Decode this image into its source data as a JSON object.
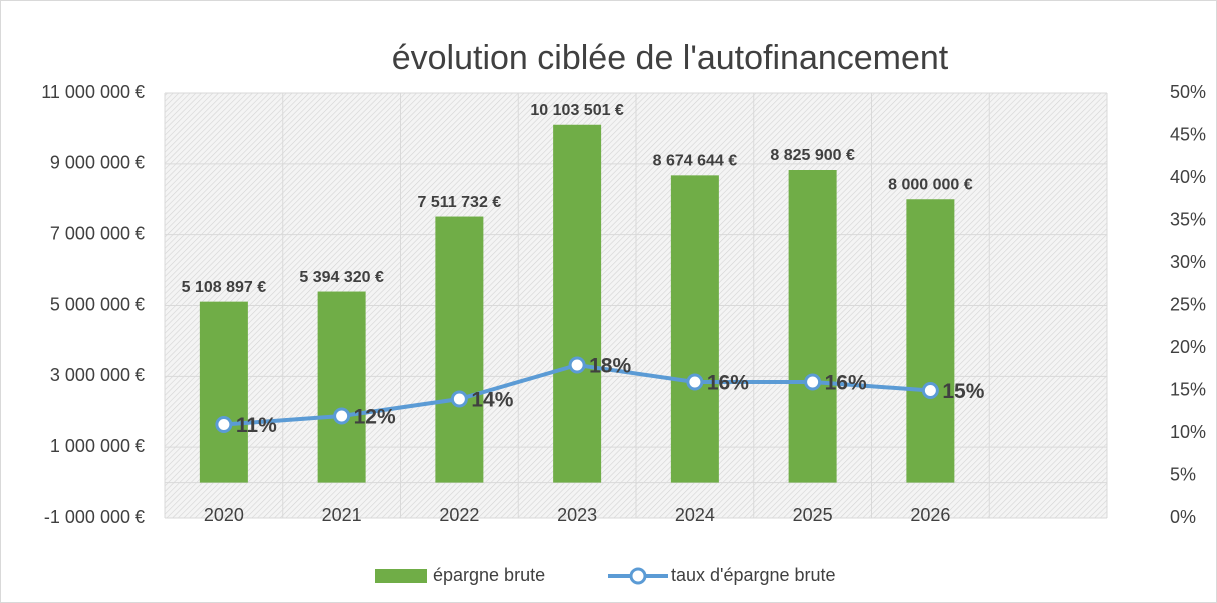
{
  "chart_data": {
    "type": "bar",
    "title": "évolution ciblée de l'autofinancement",
    "categories": [
      "2020",
      "2021",
      "2022",
      "2023",
      "2024",
      "2025",
      "2026",
      null
    ],
    "series": [
      {
        "name": "épargne brute",
        "type": "bar",
        "color": "#70ad47",
        "values": [
          5108897,
          5394320,
          7511732,
          10103501,
          8674644,
          8825900,
          8000000,
          null
        ],
        "value_labels": [
          "5 108 897 €",
          "5 394 320 €",
          "7 511 732 €",
          "10 103 501 €",
          "8 674 644 €",
          "8 825 900 €",
          "8 000 000 €",
          null
        ]
      },
      {
        "name": "taux d'épargne brute",
        "type": "line",
        "axis": "y2",
        "color": "#5b9bd5",
        "values": [
          11,
          12,
          14,
          18,
          16,
          16,
          15,
          null
        ],
        "value_labels": [
          "11%",
          "12%",
          "14%",
          "18%",
          "16%",
          "16%",
          "15%",
          null
        ]
      }
    ],
    "ylim": [
      -1000000,
      11000000
    ],
    "yticks": [
      {
        "value": -1000000,
        "label": "-1 000 000 €"
      },
      {
        "value": 1000000,
        "label": "1 000 000 €"
      },
      {
        "value": 3000000,
        "label": "3 000 000 €"
      },
      {
        "value": 5000000,
        "label": "5 000 000 €"
      },
      {
        "value": 7000000,
        "label": "7 000 000 €"
      },
      {
        "value": 9000000,
        "label": "9 000 000 €"
      },
      {
        "value": 11000000,
        "label": "11 000 000 €"
      }
    ],
    "y2lim": [
      0,
      50
    ],
    "y2ticks": [
      {
        "value": 0,
        "label": "0%"
      },
      {
        "value": 5,
        "label": "5%"
      },
      {
        "value": 10,
        "label": "10%"
      },
      {
        "value": 15,
        "label": "15%"
      },
      {
        "value": 20,
        "label": "20%"
      },
      {
        "value": 25,
        "label": "25%"
      },
      {
        "value": 30,
        "label": "30%"
      },
      {
        "value": 35,
        "label": "35%"
      },
      {
        "value": 40,
        "label": "40%"
      },
      {
        "value": 45,
        "label": "45%"
      },
      {
        "value": 50,
        "label": "50%"
      }
    ],
    "grid": true,
    "legend": "bottom"
  }
}
